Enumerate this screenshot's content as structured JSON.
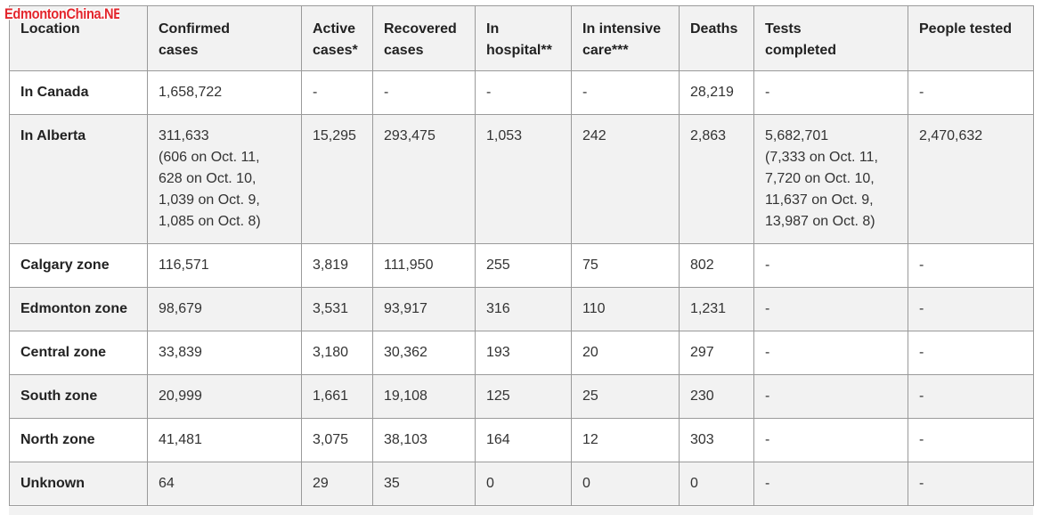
{
  "watermark": "EdmontonChina.NET",
  "table": {
    "headers": [
      {
        "line1": "Location",
        "line2": ""
      },
      {
        "line1": "Confirmed",
        "line2": "cases"
      },
      {
        "line1": "Active",
        "line2": "cases*"
      },
      {
        "line1": "Recovered",
        "line2": "cases"
      },
      {
        "line1": "In",
        "line2": "hospital**"
      },
      {
        "line1": "In intensive",
        "line2": "care***"
      },
      {
        "line1": "Deaths",
        "line2": ""
      },
      {
        "line1": "Tests",
        "line2": "completed"
      },
      {
        "line1": "People tested",
        "line2": ""
      }
    ],
    "rows": [
      {
        "location": "In Canada",
        "confirmed": [
          "1,658,722"
        ],
        "active": "-",
        "recovered": "-",
        "hospital": "-",
        "icu": "-",
        "deaths": "28,219",
        "tests": [
          "-"
        ],
        "people": "-"
      },
      {
        "location": "In Alberta",
        "confirmed": [
          "311,633",
          "(606 on Oct. 11,",
          "628 on Oct. 10,",
          "1,039 on Oct. 9,",
          "1,085 on Oct. 8)"
        ],
        "active": "15,295",
        "recovered": "293,475",
        "hospital": "1,053",
        "icu": "242",
        "deaths": "2,863",
        "tests": [
          "5,682,701",
          "(7,333 on Oct. 11,",
          "7,720 on Oct. 10,",
          "11,637 on Oct. 9,",
          "13,987 on Oct. 8)"
        ],
        "people": "2,470,632"
      },
      {
        "location": "Calgary zone",
        "confirmed": [
          "116,571"
        ],
        "active": "3,819",
        "recovered": "111,950",
        "hospital": "255",
        "icu": "75",
        "deaths": "802",
        "tests": [
          "-"
        ],
        "people": "-"
      },
      {
        "location": "Edmonton zone",
        "confirmed": [
          "98,679"
        ],
        "active": "3,531",
        "recovered": "93,917",
        "hospital": "316",
        "icu": "110",
        "deaths": "1,231",
        "tests": [
          "-"
        ],
        "people": "-"
      },
      {
        "location": "Central zone",
        "confirmed": [
          "33,839"
        ],
        "active": "3,180",
        "recovered": "30,362",
        "hospital": "193",
        "icu": "20",
        "deaths": "297",
        "tests": [
          "-"
        ],
        "people": "-"
      },
      {
        "location": "South zone",
        "confirmed": [
          "20,999"
        ],
        "active": "1,661",
        "recovered": "19,108",
        "hospital": "125",
        "icu": "25",
        "deaths": "230",
        "tests": [
          "-"
        ],
        "people": "-"
      },
      {
        "location": "North zone",
        "confirmed": [
          "41,481"
        ],
        "active": "3,075",
        "recovered": "38,103",
        "hospital": "164",
        "icu": "12",
        "deaths": "303",
        "tests": [
          "-"
        ],
        "people": "-"
      },
      {
        "location": "Unknown",
        "confirmed": [
          "64"
        ],
        "active": "29",
        "recovered": "35",
        "hospital": "0",
        "icu": "0",
        "deaths": "0",
        "tests": [
          "-"
        ],
        "people": "-"
      }
    ]
  }
}
